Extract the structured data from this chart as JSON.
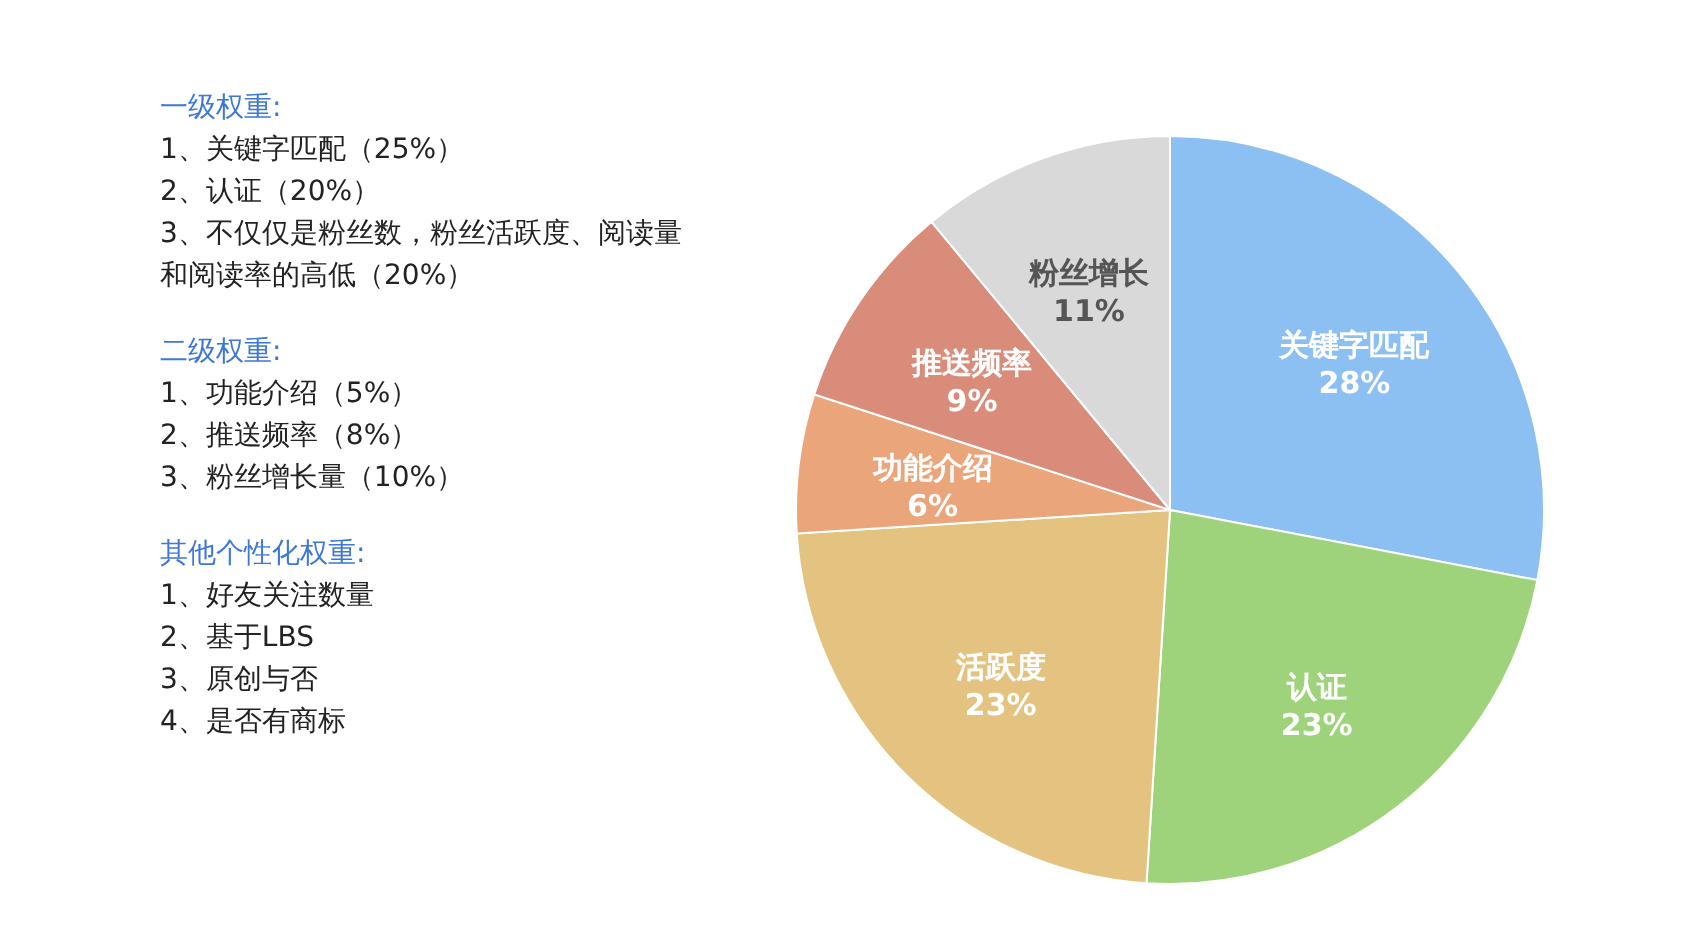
{
  "chart_data": {
    "type": "pie",
    "categories": [
      "关键字匹配",
      "认证",
      "活跃度",
      "功能介绍",
      "推送频率",
      "粉丝增长"
    ],
    "values": [
      28,
      23,
      23,
      6,
      9,
      11
    ],
    "value_labels": [
      "28%",
      "23%",
      "23%",
      "6%",
      "9%",
      "11%"
    ],
    "colors": [
      "#8cc0f2",
      "#9fd37b",
      "#e3c37f",
      "#eaa57a",
      "#d98c79",
      "#d9d9d9"
    ],
    "annotations": [
      "一级权重:",
      "1、关键字匹配（25%）",
      "2、认证（20%）",
      "3、不仅仅是粉丝数，粉丝活跃度、阅读量和阅读率的高低（20%）",
      "二级权重:",
      "1、功能介绍（5%）",
      "2、推送频率（8%）",
      "3、粉丝增长量（10%）",
      "其他个性化权重:",
      "1、好友关注数量",
      "2、基于LBS",
      "3、原创与否",
      "4、是否有商标"
    ]
  }
}
